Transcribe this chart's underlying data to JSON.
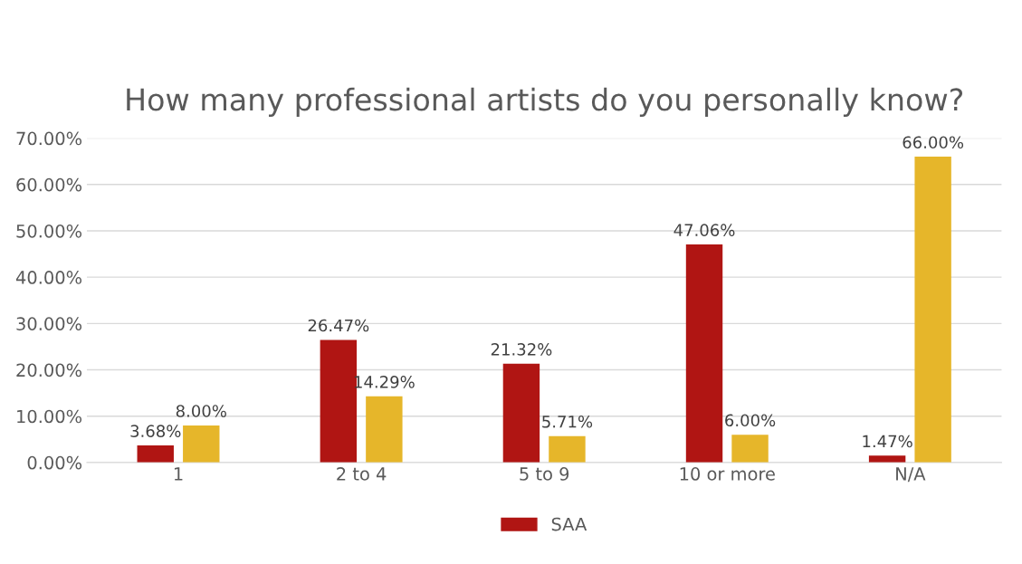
{
  "chart_data": {
    "type": "bar",
    "title": "How many professional artists do you personally know?",
    "categories": [
      "1",
      "2 to 4",
      "5 to 9",
      "10 or more",
      "N/A"
    ],
    "series": [
      {
        "name": "SAA",
        "color": "#b01513",
        "values": [
          3.68,
          26.47,
          21.32,
          47.06,
          1.47
        ],
        "value_labels": [
          "3.68%",
          "26.47%",
          "21.32%",
          "47.06%",
          "1.47%"
        ]
      },
      {
        "color": "#e6b62a",
        "values": [
          8.0,
          14.29,
          5.71,
          6.0,
          66.0
        ],
        "value_labels": [
          "8.00%",
          "14.29%",
          "5.71%",
          "6.00%",
          "66.00%"
        ]
      }
    ],
    "ylim": [
      0,
      70
    ],
    "yticks": [
      {
        "value": 0,
        "label": "0.00%"
      },
      {
        "value": 10,
        "label": "10.00%"
      },
      {
        "value": 20,
        "label": "20.00%"
      },
      {
        "value": 30,
        "label": "30.00%"
      },
      {
        "value": 40,
        "label": "40.00%"
      },
      {
        "value": 50,
        "label": "50.00%"
      },
      {
        "value": 60,
        "label": "60.00%"
      },
      {
        "value": 70,
        "label": "70.00%"
      }
    ],
    "grid": "y",
    "legend": "bottom"
  }
}
